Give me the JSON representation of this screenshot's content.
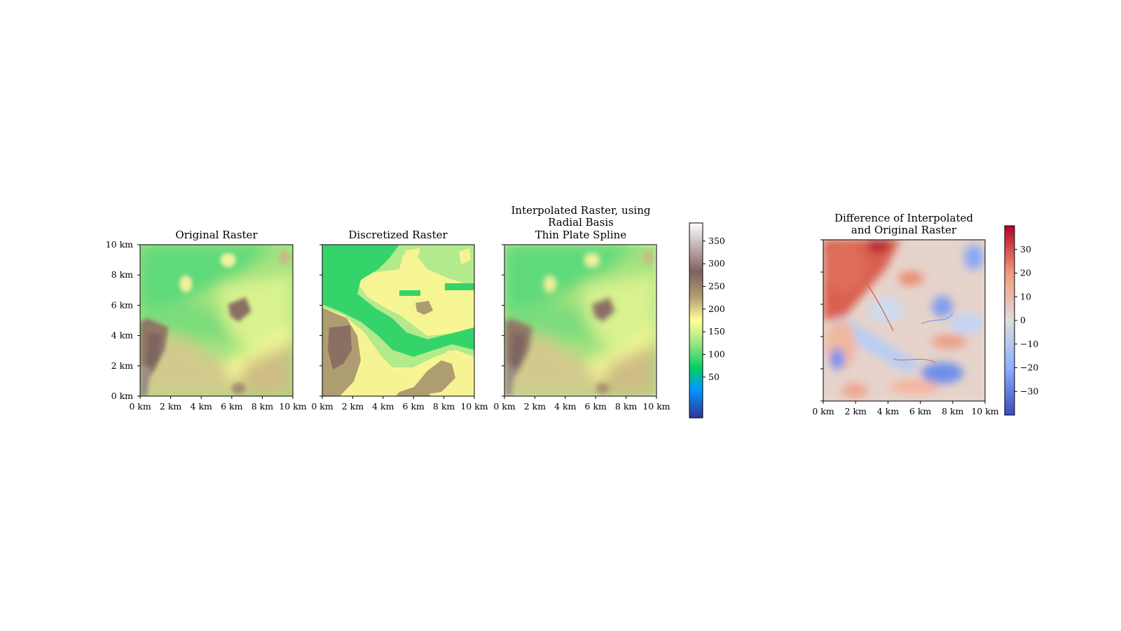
{
  "chart_data": [
    {
      "type": "heatmap",
      "title": "Original Raster",
      "x_ticks": [
        "0 km",
        "2 km",
        "4 km",
        "6 km",
        "8 km",
        "10 km"
      ],
      "y_ticks": [
        "0 km",
        "2 km",
        "4 km",
        "6 km",
        "8 km",
        "10 km"
      ],
      "xlim": [
        0,
        10
      ],
      "ylim": [
        0,
        10
      ],
      "colormap": "terrain",
      "value_range": [
        0,
        400
      ]
    },
    {
      "type": "heatmap",
      "title": "Discretized Raster",
      "x_ticks": [
        "0 km",
        "2 km",
        "4 km",
        "6 km",
        "8 km",
        "10 km"
      ],
      "xlim": [
        0,
        10
      ],
      "ylim": [
        0,
        10
      ],
      "colormap": "terrain",
      "value_range": [
        0,
        400
      ]
    },
    {
      "type": "heatmap",
      "title_lines": [
        "Interpolated Raster, using",
        "Radial Basis",
        "Thin Plate Spline"
      ],
      "x_ticks": [
        "0 km",
        "2 km",
        "4 km",
        "6 km",
        "8 km",
        "10 km"
      ],
      "xlim": [
        0,
        10
      ],
      "ylim": [
        0,
        10
      ],
      "colormap": "terrain",
      "value_range": [
        0,
        400
      ],
      "colorbar": {
        "ticks": [
          50,
          100,
          150,
          200,
          250,
          300,
          350
        ],
        "labels": [
          "50",
          "100",
          "150",
          "200",
          "250",
          "300",
          "350"
        ],
        "range": [
          -40,
          390
        ]
      }
    },
    {
      "type": "heatmap",
      "title_lines": [
        "Difference of Interpolated",
        "and Original Raster"
      ],
      "x_ticks": [
        "0 km",
        "2 km",
        "4 km",
        "6 km",
        "8 km",
        "10 km"
      ],
      "xlim": [
        0,
        10
      ],
      "ylim": [
        0,
        10
      ],
      "colormap": "coolwarm",
      "value_range": [
        -40,
        40
      ],
      "colorbar": {
        "ticks": [
          -30,
          -20,
          -10,
          0,
          10,
          20,
          30
        ],
        "labels": [
          "−30",
          "−20",
          "−10",
          "0",
          "10",
          "20",
          "30"
        ],
        "range": [
          -40,
          40
        ]
      }
    }
  ],
  "colors": {
    "terrain": [
      "#333399",
      "#0099ff",
      "#00cc66",
      "#99e680",
      "#ffff99",
      "#b39e6e",
      "#806060",
      "#ffffff"
    ],
    "coolwarm": [
      "#3b4cc0",
      "#9abbff",
      "#dddddd",
      "#f7a889",
      "#b40426"
    ]
  }
}
